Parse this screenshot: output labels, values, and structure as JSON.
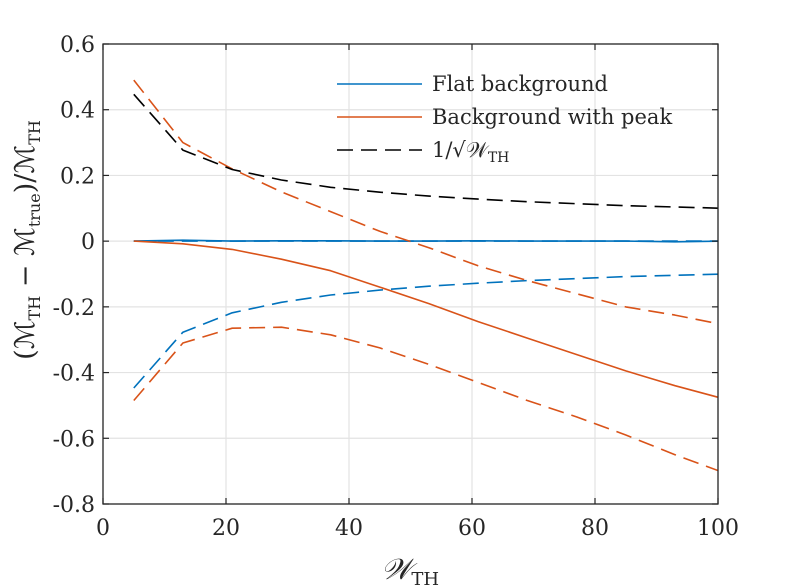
{
  "chart_data": {
    "type": "line",
    "title": "",
    "xlabel": "𝒲TH",
    "ylabel": "(ℳTH − ℳtrue)/ℳTH",
    "xlim": [
      0,
      100
    ],
    "ylim": [
      -0.8,
      0.6
    ],
    "grid": true,
    "legend_position": "top-right",
    "x_ticks": [
      0,
      20,
      40,
      60,
      80,
      100
    ],
    "y_ticks": [
      -0.8,
      -0.6,
      -0.4,
      -0.2,
      0,
      0.2,
      0.4,
      0.6
    ],
    "x_tick_labels": [
      "0",
      "20",
      "40",
      "60",
      "80",
      "100"
    ],
    "y_tick_labels": [
      "-0.8",
      "-0.6",
      "-0.4",
      "-0.2",
      "0",
      "0.2",
      "0.4",
      "0.6"
    ],
    "x_label_parts": {
      "main": "𝒲",
      "sub": "TH"
    },
    "y_label_parts": {
      "open": "(ℳ",
      "sub1": "TH",
      "minus": " − ℳ",
      "sub2": "true",
      "close": ")/ℳ",
      "sub3": "TH"
    },
    "legend": [
      {
        "label": "Flat background",
        "color": "#0072BD",
        "dash": "solid"
      },
      {
        "label": "Background with peak",
        "color": "#D95319",
        "dash": "solid"
      },
      {
        "label": "1/√𝒲TH",
        "color": "#000000",
        "dash": "dashed",
        "label_parts": {
          "main": "1/√𝒲",
          "sub": "TH"
        }
      }
    ],
    "series": [
      {
        "name": "Flat background",
        "color": "#0072BD",
        "dash": "solid",
        "x": [
          5,
          13,
          21,
          29,
          37,
          45,
          53,
          61,
          69,
          77,
          85,
          93,
          101
        ],
        "y": [
          0.0,
          0.003,
          0.0,
          0.001,
          0.001,
          0.0,
          0.0,
          0.001,
          0.0,
          0.0,
          0.0,
          -0.002,
          0.0
        ]
      },
      {
        "name": "Flat background upper",
        "color": "#0072BD",
        "dash": "dashed",
        "x": [
          5,
          13,
          21,
          29,
          37,
          45,
          53,
          61,
          69,
          77,
          85,
          93,
          101
        ],
        "y": [
          0.0,
          0.0,
          0.0,
          0.0,
          0.0,
          0.0,
          0.0,
          0.0,
          0.0,
          0.0,
          0.0,
          0.0,
          0.0
        ]
      },
      {
        "name": "Flat background lower",
        "color": "#0072BD",
        "dash": "dashed",
        "x": [
          5,
          13,
          21,
          29,
          37,
          45,
          53,
          61,
          69,
          77,
          85,
          93,
          101
        ],
        "y": [
          -0.447,
          -0.277,
          -0.218,
          -0.186,
          -0.164,
          -0.149,
          -0.137,
          -0.128,
          -0.12,
          -0.114,
          -0.108,
          -0.104,
          -0.1
        ]
      },
      {
        "name": "Background with peak",
        "color": "#D95319",
        "dash": "solid",
        "x": [
          5,
          13,
          21,
          29,
          37,
          45,
          53,
          61,
          69,
          77,
          85,
          93,
          101
        ],
        "y": [
          0.0,
          -0.008,
          -0.025,
          -0.055,
          -0.09,
          -0.14,
          -0.19,
          -0.245,
          -0.295,
          -0.345,
          -0.395,
          -0.44,
          -0.48
        ]
      },
      {
        "name": "Background with peak upper",
        "color": "#D95319",
        "dash": "dashed",
        "x": [
          5,
          13,
          21,
          29,
          37,
          45,
          53,
          61,
          69,
          77,
          85,
          93,
          101
        ],
        "y": [
          0.49,
          0.3,
          0.22,
          0.15,
          0.09,
          0.03,
          -0.02,
          -0.075,
          -0.12,
          -0.16,
          -0.2,
          -0.225,
          -0.255
        ]
      },
      {
        "name": "Background with peak lower",
        "color": "#D95319",
        "dash": "dashed",
        "x": [
          5,
          13,
          21,
          29,
          37,
          45,
          53,
          61,
          69,
          77,
          85,
          93,
          101
        ],
        "y": [
          -0.485,
          -0.31,
          -0.265,
          -0.262,
          -0.285,
          -0.325,
          -0.375,
          -0.43,
          -0.485,
          -0.535,
          -0.59,
          -0.65,
          -0.705
        ]
      },
      {
        "name": "1/√𝒲TH",
        "color": "#000000",
        "dash": "dashed",
        "x": [
          5,
          13,
          21,
          29,
          37,
          45,
          53,
          61,
          69,
          77,
          85,
          93,
          101
        ],
        "y": [
          0.447,
          0.277,
          0.218,
          0.186,
          0.164,
          0.149,
          0.137,
          0.128,
          0.12,
          0.114,
          0.108,
          0.104,
          0.1
        ]
      }
    ]
  }
}
